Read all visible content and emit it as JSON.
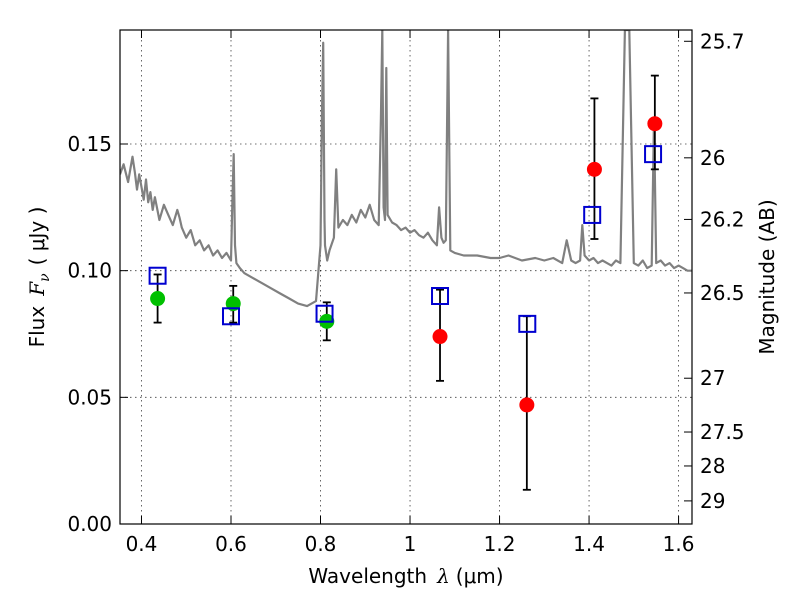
{
  "chart_data": {
    "type": "scatter",
    "xlabel_prefix": "Wavelength",
    "xlabel_var": "λ",
    "xlabel_unit": "(μm)",
    "ylabel_prefix": "Flux",
    "ylabel_var": "F",
    "ylabel_sub": "ν",
    "ylabel_unit": "( μJy )",
    "y2label": "Magnitude (AB)",
    "xlim": [
      0.352,
      1.63
    ],
    "ylim": [
      0.0,
      0.195
    ],
    "grid": true,
    "xticks": [
      0.4,
      0.6,
      0.8,
      1.0,
      1.2,
      1.4,
      1.6
    ],
    "xtick_labels": [
      "0.4",
      "0.6",
      "0.8",
      "1",
      "1.2",
      "1.4",
      "1.6"
    ],
    "yticks": [
      0.0,
      0.05,
      0.1,
      0.15
    ],
    "ytick_labels": [
      "0.00",
      "0.05",
      "0.10",
      "0.15"
    ],
    "mag_ticks": [
      25.7,
      26,
      26.2,
      26.5,
      27,
      27.5,
      28,
      29
    ],
    "mag_tick_labels": [
      "25.7",
      "26",
      "26.2",
      "26.5",
      "27",
      "27.5",
      "28",
      "29"
    ],
    "colors": {
      "model": "#808080",
      "optical": "#00c000",
      "infrared": "#ff0000",
      "synthetic": "#0000d0",
      "errorbar": "#000000"
    },
    "series": [
      {
        "style": "model-spectrum",
        "x": [
          0.352,
          0.36,
          0.37,
          0.375,
          0.38,
          0.385,
          0.39,
          0.395,
          0.4,
          0.405,
          0.41,
          0.415,
          0.42,
          0.425,
          0.43,
          0.44,
          0.45,
          0.46,
          0.47,
          0.48,
          0.485,
          0.49,
          0.5,
          0.51,
          0.52,
          0.53,
          0.54,
          0.55,
          0.56,
          0.57,
          0.58,
          0.59,
          0.6,
          0.603,
          0.606,
          0.609,
          0.612,
          0.62,
          0.63,
          0.65,
          0.67,
          0.69,
          0.71,
          0.73,
          0.75,
          0.77,
          0.79,
          0.8,
          0.803,
          0.806,
          0.809,
          0.81,
          0.815,
          0.82,
          0.83,
          0.835,
          0.84,
          0.85,
          0.86,
          0.87,
          0.88,
          0.89,
          0.9,
          0.91,
          0.92,
          0.93,
          0.935,
          0.938,
          0.941,
          0.944,
          0.947,
          0.95,
          0.96,
          0.97,
          0.98,
          0.99,
          1.0,
          1.01,
          1.02,
          1.03,
          1.04,
          1.05,
          1.06,
          1.065,
          1.07,
          1.075,
          1.08,
          1.085,
          1.09,
          1.1,
          1.12,
          1.15,
          1.18,
          1.2,
          1.22,
          1.25,
          1.28,
          1.3,
          1.32,
          1.34,
          1.35,
          1.36,
          1.37,
          1.38,
          1.385,
          1.39,
          1.4,
          1.41,
          1.42,
          1.43,
          1.44,
          1.45,
          1.46,
          1.47,
          1.48,
          1.49,
          1.5,
          1.51,
          1.52,
          1.53,
          1.54,
          1.545,
          1.55,
          1.56,
          1.57,
          1.58,
          1.59,
          1.6,
          1.61,
          1.62,
          1.63
        ],
        "y": [
          0.138,
          0.142,
          0.135,
          0.14,
          0.145,
          0.139,
          0.132,
          0.138,
          0.133,
          0.128,
          0.136,
          0.127,
          0.131,
          0.124,
          0.129,
          0.12,
          0.126,
          0.122,
          0.118,
          0.124,
          0.121,
          0.117,
          0.113,
          0.116,
          0.11,
          0.112,
          0.108,
          0.11,
          0.106,
          0.108,
          0.105,
          0.107,
          0.104,
          0.126,
          0.146,
          0.11,
          0.103,
          0.101,
          0.099,
          0.097,
          0.095,
          0.093,
          0.091,
          0.089,
          0.087,
          0.086,
          0.088,
          0.11,
          0.16,
          0.19,
          0.12,
          0.11,
          0.104,
          0.108,
          0.113,
          0.14,
          0.117,
          0.12,
          0.118,
          0.122,
          0.119,
          0.124,
          0.121,
          0.126,
          0.12,
          0.118,
          0.16,
          0.195,
          0.125,
          0.12,
          0.18,
          0.122,
          0.119,
          0.118,
          0.116,
          0.117,
          0.115,
          0.116,
          0.114,
          0.113,
          0.115,
          0.112,
          0.11,
          0.125,
          0.113,
          0.111,
          0.112,
          0.195,
          0.108,
          0.107,
          0.106,
          0.106,
          0.105,
          0.105,
          0.106,
          0.104,
          0.105,
          0.104,
          0.105,
          0.103,
          0.112,
          0.104,
          0.103,
          0.104,
          0.118,
          0.106,
          0.104,
          0.105,
          0.103,
          0.104,
          0.103,
          0.102,
          0.104,
          0.103,
          0.195,
          0.195,
          0.103,
          0.102,
          0.104,
          0.101,
          0.102,
          0.16,
          0.103,
          0.104,
          0.102,
          0.103,
          0.101,
          0.102,
          0.101,
          0.1,
          0.1
        ]
      },
      {
        "style": "green-circles",
        "x": [
          0.436,
          0.605,
          0.814
        ],
        "y": [
          0.089,
          0.087,
          0.08
        ],
        "err_low": [
          0.0795,
          0.0795,
          0.0725
        ],
        "err_high": [
          0.0985,
          0.094,
          0.0875
        ]
      },
      {
        "style": "red-circles",
        "x": [
          1.067,
          1.261,
          1.412,
          1.547
        ],
        "y": [
          0.074,
          0.047,
          0.14,
          0.158
        ],
        "err_low": [
          0.0565,
          0.0135,
          0.1125,
          0.14
        ],
        "err_high": [
          0.0925,
          0.082,
          0.168,
          0.177
        ]
      },
      {
        "style": "blue-open-squares",
        "x": [
          0.436,
          0.6,
          0.809,
          1.067,
          1.262,
          1.407,
          1.543
        ],
        "y": [
          0.098,
          0.082,
          0.083,
          0.09,
          0.079,
          0.122,
          0.146
        ]
      }
    ]
  }
}
